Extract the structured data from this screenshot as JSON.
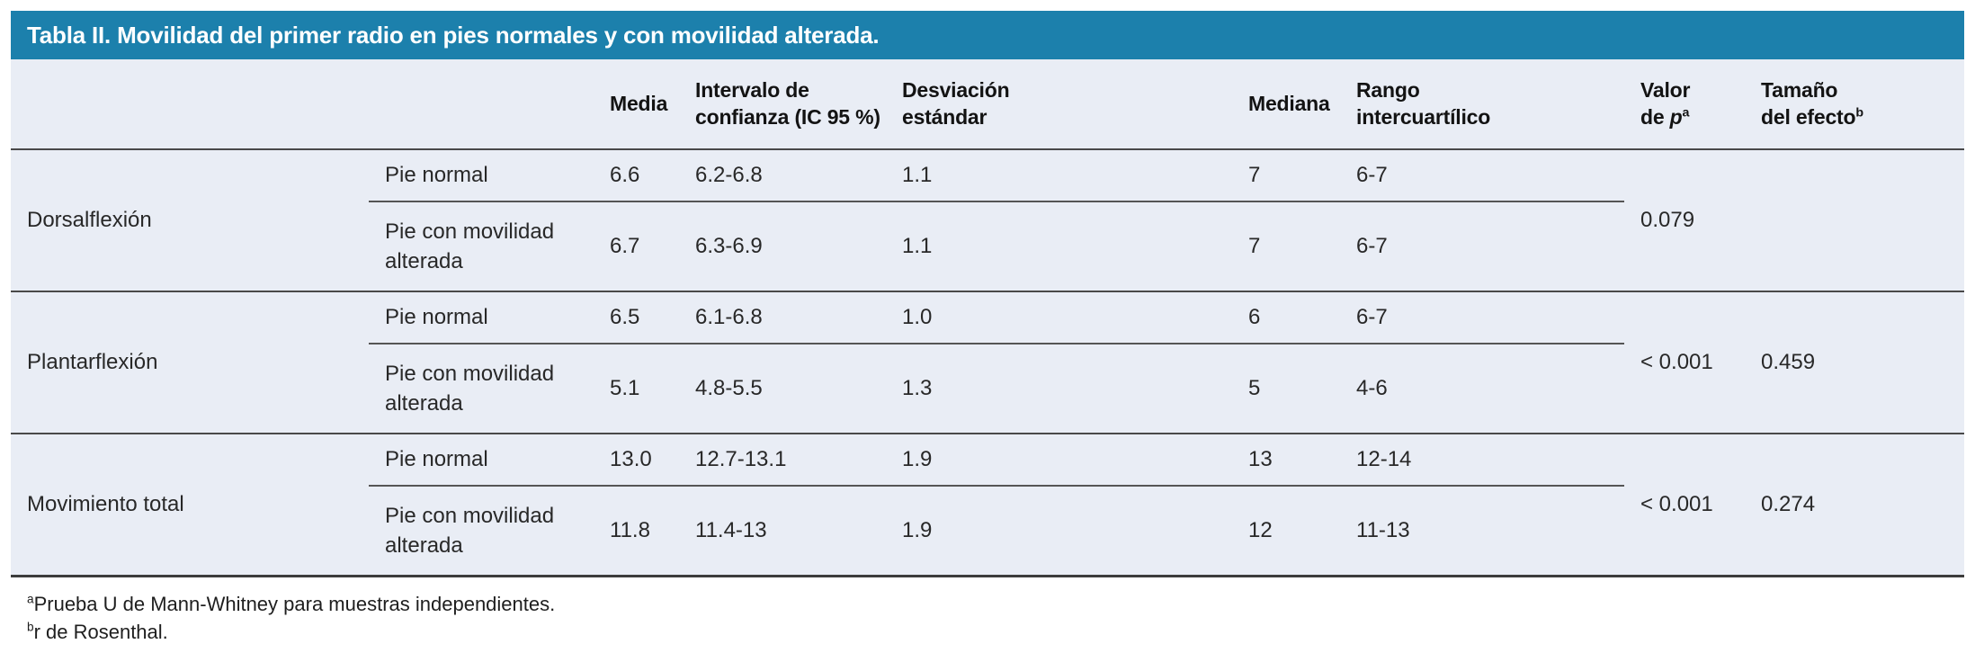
{
  "colors": {
    "title_bar_bg": "#1c80ac",
    "title_text": "#ffffff",
    "table_body_bg": "#e9edf5",
    "rule_color": "#494949"
  },
  "title": "Tabla II. Movilidad del primer radio en pies normales y con movilidad alterada.",
  "header": {
    "media": "Media",
    "ic": "Intervalo de\nconfianza (IC 95 %)",
    "sd": "Desviación\nestándar",
    "mediana": "Mediana",
    "rango": "Rango\nintercuartílico",
    "p": {
      "line1": "Valor",
      "prefix": "de ",
      "symbol": "p",
      "sup": "a"
    },
    "effect": {
      "line1": "Tamaño",
      "line2": "del efecto",
      "sup": "b"
    }
  },
  "sections": [
    {
      "name": "Dorsalflexión",
      "p_value": "0.079",
      "effect_size": "",
      "rows": [
        {
          "label": "Pie normal",
          "media": "6.6",
          "ic": "6.2-6.8",
          "sd": "1.1",
          "mediana": "7",
          "rango": "6-7"
        },
        {
          "label": "Pie con movilidad\nalterada",
          "media": "6.7",
          "ic": "6.3-6.9",
          "sd": "1.1",
          "mediana": "7",
          "rango": "6-7"
        }
      ]
    },
    {
      "name": "Plantarflexión",
      "p_value": "< 0.001",
      "effect_size": "0.459",
      "rows": [
        {
          "label": "Pie normal",
          "media": "6.5",
          "ic": "6.1-6.8",
          "sd": "1.0",
          "mediana": "6",
          "rango": "6-7"
        },
        {
          "label": "Pie con movilidad\nalterada",
          "media": "5.1",
          "ic": "4.8-5.5",
          "sd": "1.3",
          "mediana": "5",
          "rango": "4-6"
        }
      ]
    },
    {
      "name": "Movimiento total",
      "p_value": "< 0.001",
      "effect_size": "0.274",
      "rows": [
        {
          "label": "Pie normal",
          "media": "13.0",
          "ic": "12.7-13.1",
          "sd": "1.9",
          "mediana": "13",
          "rango": "12-14"
        },
        {
          "label": "Pie con movilidad\nalterada",
          "media": "11.8",
          "ic": "11.4-13",
          "sd": "1.9",
          "mediana": "12",
          "rango": "11-13"
        }
      ]
    }
  ],
  "footnotes": [
    {
      "sup": "a",
      "text": "Prueba U de Mann-Whitney para muestras independientes."
    },
    {
      "sup": "b",
      "text": "r de Rosenthal."
    }
  ]
}
